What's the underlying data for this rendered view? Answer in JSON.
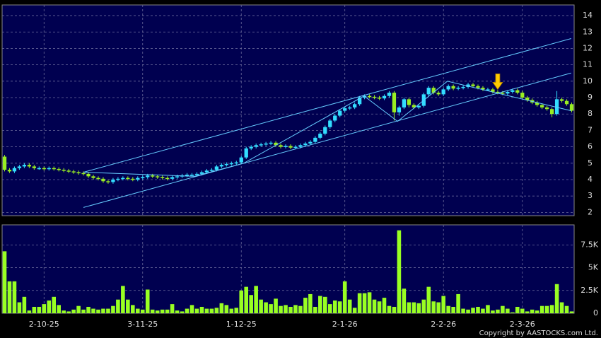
{
  "chart_data": {
    "type": "candlestick",
    "categories": [
      null,
      null,
      null,
      null,
      null,
      null,
      null,
      null,
      "2-10-25",
      null,
      null,
      null,
      null,
      null,
      null,
      null,
      null,
      null,
      null,
      null,
      null,
      null,
      null,
      null,
      null,
      null,
      null,
      null,
      "3-11-25",
      null,
      null,
      null,
      null,
      null,
      null,
      null,
      null,
      null,
      null,
      null,
      null,
      null,
      null,
      null,
      null,
      null,
      null,
      null,
      "1-12-25",
      null,
      null,
      null,
      null,
      null,
      null,
      null,
      null,
      null,
      null,
      null,
      null,
      null,
      null,
      null,
      null,
      null,
      null,
      null,
      null,
      "2-1-26",
      null,
      null,
      null,
      null,
      null,
      null,
      null,
      null,
      null,
      null,
      null,
      null,
      null,
      null,
      null,
      null,
      null,
      null,
      null,
      "2-2-26",
      null,
      null,
      null,
      null,
      null,
      null,
      null,
      null,
      null,
      null,
      null,
      null,
      null,
      null,
      null,
      "2-3-26",
      null,
      null,
      null,
      null,
      null,
      null,
      null,
      null,
      null,
      null
    ],
    "open": [
      5.4,
      4.6,
      4.5,
      4.7,
      4.8,
      4.9,
      4.8,
      4.7,
      4.7,
      4.65,
      4.7,
      4.65,
      4.6,
      4.55,
      4.5,
      4.45,
      4.4,
      4.35,
      4.2,
      4.1,
      4.05,
      3.9,
      3.85,
      4.0,
      4.05,
      4.1,
      4.05,
      4.0,
      4.1,
      4.15,
      4.25,
      4.2,
      4.15,
      4.1,
      4.05,
      4.15,
      4.2,
      4.25,
      4.3,
      4.3,
      4.35,
      4.45,
      4.55,
      4.6,
      4.8,
      4.9,
      4.95,
      5.0,
      5.05,
      5.35,
      5.9,
      6.0,
      6.1,
      6.15,
      6.2,
      6.25,
      6.1,
      6.0,
      6.05,
      5.95,
      6.0,
      6.1,
      6.2,
      6.3,
      6.55,
      6.8,
      7.2,
      7.6,
      7.9,
      8.2,
      8.35,
      8.4,
      8.6,
      9.0,
      9.1,
      9.05,
      9.0,
      8.95,
      9.1,
      9.3,
      8.1,
      8.4,
      8.9,
      8.55,
      8.4,
      8.5,
      9.2,
      9.6,
      9.3,
      9.2,
      9.5,
      9.7,
      9.55,
      9.6,
      9.65,
      9.8,
      9.7,
      9.6,
      9.5,
      9.5,
      9.35,
      9.3,
      9.25,
      9.35,
      9.45,
      9.3,
      9.0,
      8.85,
      8.7,
      8.55,
      8.4,
      8.3,
      8.0,
      8.9,
      8.8,
      8.6
    ],
    "high": [
      5.5,
      4.7,
      4.8,
      4.9,
      5.0,
      5.0,
      4.9,
      4.8,
      4.8,
      4.8,
      4.8,
      4.75,
      4.7,
      4.65,
      4.6,
      4.55,
      4.5,
      4.45,
      4.3,
      4.2,
      4.15,
      4.0,
      4.1,
      4.15,
      4.2,
      4.2,
      4.15,
      4.2,
      4.25,
      4.35,
      4.35,
      4.3,
      4.25,
      4.2,
      4.25,
      4.3,
      4.35,
      4.4,
      4.4,
      4.45,
      4.55,
      4.65,
      4.7,
      4.9,
      5.0,
      5.05,
      5.1,
      5.15,
      5.45,
      6.0,
      6.1,
      6.2,
      6.25,
      6.3,
      6.35,
      6.35,
      6.2,
      6.15,
      6.15,
      6.1,
      6.2,
      6.3,
      6.4,
      6.65,
      6.9,
      7.3,
      7.7,
      8.0,
      8.3,
      8.45,
      8.5,
      8.7,
      9.1,
      9.2,
      9.2,
      9.15,
      9.1,
      9.2,
      9.4,
      9.4,
      8.5,
      9.0,
      9.0,
      8.65,
      8.6,
      9.3,
      9.7,
      9.7,
      9.4,
      9.6,
      9.8,
      9.8,
      9.7,
      9.75,
      9.9,
      9.9,
      9.8,
      9.7,
      9.6,
      9.6,
      9.45,
      9.4,
      9.45,
      9.55,
      9.55,
      9.4,
      9.1,
      8.95,
      8.8,
      8.65,
      8.5,
      8.4,
      9.4,
      9.0,
      8.9,
      8.7
    ],
    "low": [
      4.5,
      4.4,
      4.4,
      4.6,
      4.7,
      4.7,
      4.6,
      4.6,
      4.55,
      4.55,
      4.55,
      4.5,
      4.45,
      4.4,
      4.35,
      4.3,
      4.25,
      4.1,
      4.0,
      3.95,
      3.8,
      3.75,
      3.75,
      3.9,
      3.95,
      3.95,
      3.9,
      3.9,
      4.0,
      4.05,
      4.1,
      4.05,
      4.0,
      3.95,
      3.95,
      4.05,
      4.1,
      4.15,
      4.2,
      4.2,
      4.25,
      4.35,
      4.45,
      4.5,
      4.7,
      4.8,
      4.85,
      4.9,
      4.95,
      5.25,
      5.8,
      5.9,
      6.0,
      6.05,
      6.1,
      6.0,
      5.9,
      5.9,
      5.85,
      5.85,
      5.9,
      6.0,
      6.1,
      6.2,
      6.45,
      6.7,
      7.1,
      7.5,
      7.8,
      8.1,
      8.25,
      8.3,
      8.5,
      8.9,
      8.95,
      8.9,
      8.85,
      8.85,
      9.0,
      7.6,
      7.9,
      8.3,
      8.4,
      8.3,
      8.3,
      8.4,
      9.1,
      9.2,
      9.1,
      9.1,
      9.4,
      9.45,
      9.45,
      9.5,
      9.55,
      9.6,
      9.5,
      9.4,
      9.4,
      9.25,
      9.2,
      9.15,
      9.15,
      9.25,
      9.2,
      8.9,
      8.75,
      8.6,
      8.45,
      8.3,
      8.2,
      7.8,
      7.9,
      8.7,
      8.5,
      8.1
    ],
    "close": [
      4.6,
      4.5,
      4.7,
      4.8,
      4.9,
      4.8,
      4.7,
      4.7,
      4.65,
      4.7,
      4.65,
      4.6,
      4.55,
      4.5,
      4.45,
      4.4,
      4.35,
      4.2,
      4.1,
      4.05,
      3.9,
      3.85,
      4.0,
      4.05,
      4.1,
      4.05,
      4.0,
      4.1,
      4.15,
      4.25,
      4.2,
      4.15,
      4.1,
      4.05,
      4.15,
      4.2,
      4.25,
      4.3,
      4.3,
      4.35,
      4.45,
      4.55,
      4.6,
      4.8,
      4.9,
      4.95,
      5.0,
      5.05,
      5.35,
      5.9,
      6.0,
      6.1,
      6.15,
      6.2,
      6.25,
      6.1,
      6.0,
      6.05,
      5.95,
      6.0,
      6.1,
      6.2,
      6.3,
      6.55,
      6.8,
      7.2,
      7.6,
      7.9,
      8.2,
      8.35,
      8.4,
      8.6,
      9.0,
      9.1,
      9.05,
      9.0,
      8.95,
      9.1,
      9.3,
      8.1,
      8.4,
      8.9,
      8.55,
      8.4,
      8.5,
      9.2,
      9.6,
      9.3,
      9.2,
      9.5,
      9.7,
      9.55,
      9.6,
      9.65,
      9.8,
      9.7,
      9.6,
      9.5,
      9.5,
      9.35,
      9.3,
      9.25,
      9.35,
      9.45,
      9.3,
      9.0,
      8.85,
      8.7,
      8.55,
      8.4,
      8.3,
      8.0,
      8.9,
      8.8,
      8.6,
      8.2
    ],
    "volume": [
      6800,
      3500,
      3500,
      1200,
      1800,
      300,
      700,
      700,
      1000,
      1400,
      1800,
      900,
      300,
      200,
      400,
      800,
      400,
      700,
      500,
      400,
      500,
      500,
      800,
      1500,
      3000,
      1500,
      900,
      500,
      400,
      2600,
      400,
      300,
      400,
      400,
      1000,
      300,
      200,
      500,
      900,
      500,
      700,
      500,
      500,
      600,
      1100,
      900,
      500,
      600,
      2500,
      2900,
      2000,
      3000,
      1500,
      1200,
      1000,
      1600,
      800,
      900,
      700,
      900,
      800,
      1700,
      2100,
      700,
      1900,
      1800,
      1000,
      1400,
      1300,
      3500,
      1500,
      600,
      2200,
      2200,
      2300,
      1500,
      1300,
      1700,
      800,
      700,
      9100,
      2700,
      1200,
      1200,
      1100,
      1500,
      2900,
      1300,
      1200,
      1900,
      800,
      700,
      2100,
      500,
      400,
      600,
      700,
      500,
      900,
      300,
      400,
      800,
      500,
      100,
      700,
      500,
      200,
      400,
      300,
      800,
      800,
      900,
      3200,
      1200,
      800,
      200
    ],
    "up_color": "#33ddff",
    "down_color": "#99ee22",
    "volume_color": "#99ff22",
    "ylim": [
      1.8,
      14.65
    ],
    "yticks": [
      2,
      3,
      4,
      5,
      6,
      7,
      8,
      9,
      10,
      11,
      12,
      13,
      14
    ],
    "volume_ylim": [
      0,
      9700
    ],
    "volume_yticks": [
      0,
      {
        "value": 2500,
        "label": "2.5K"
      },
      {
        "value": 5000,
        "label": "5K"
      },
      {
        "value": 7500,
        "label": "7.5K"
      }
    ],
    "grid": true,
    "lines": [
      {
        "x": [
          16,
          114.9
        ],
        "y": [
          4.45,
          12.6
        ]
      },
      {
        "x": [
          16,
          114.9
        ],
        "y": [
          2.3,
          10.5
        ]
      },
      {
        "x": [
          16,
          38.5,
          48.5,
          72.9,
          79.7,
          89.8,
          114.9
        ],
        "y": [
          4.45,
          4.2,
          5.0,
          9.1,
          7.55,
          10.0,
          8.2
        ]
      }
    ],
    "line_color": "#66ccff",
    "marker": {
      "x": 100,
      "y": 9.5,
      "color": "#ffcc00"
    },
    "copyright": "Copyright by AASTOCKS.com Ltd."
  }
}
